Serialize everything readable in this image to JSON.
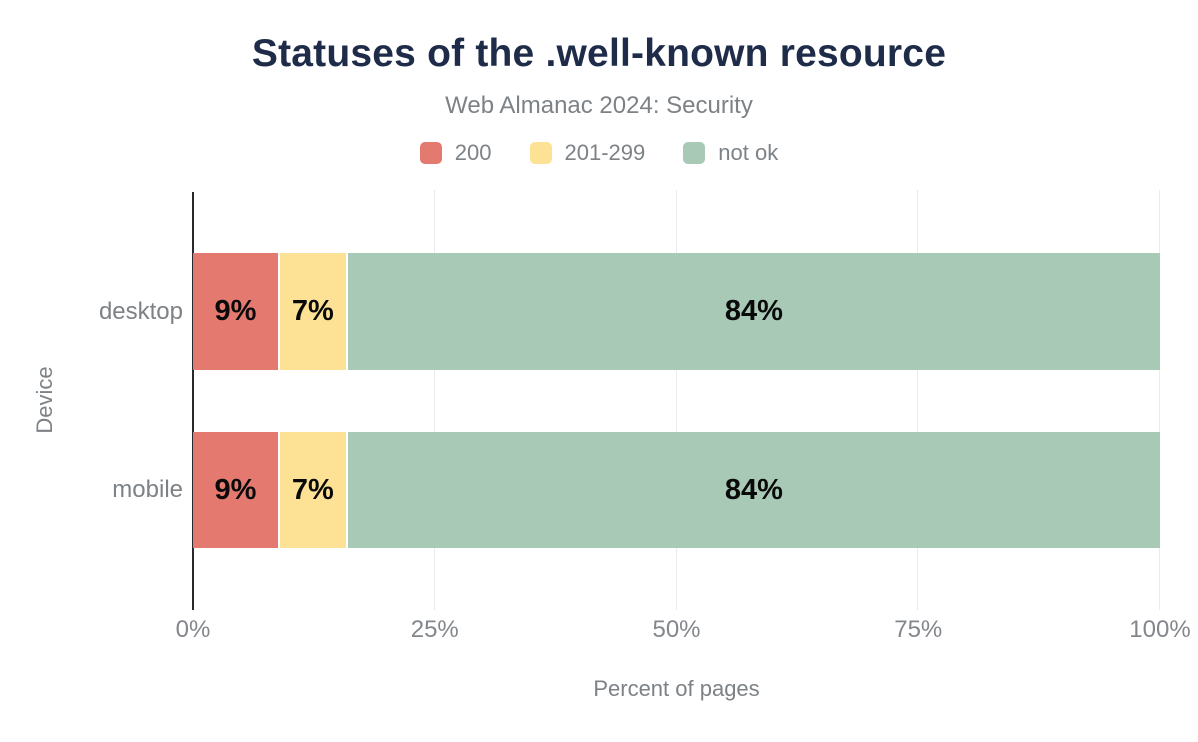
{
  "header": {
    "title": "Statuses of the .well-known resource",
    "subtitle": "Web Almanac 2024: Security"
  },
  "chart_data": {
    "type": "bar",
    "orientation": "horizontal",
    "stacked": true,
    "title": "Statuses of the .well-known resource",
    "subtitle": "Web Almanac 2024: Security",
    "categories": [
      "desktop",
      "mobile"
    ],
    "series": [
      {
        "name": "200",
        "color": "#e4796f",
        "values": [
          9,
          9
        ]
      },
      {
        "name": "201-299",
        "color": "#fde295",
        "values": [
          7,
          7
        ]
      },
      {
        "name": "not ok",
        "color": "#a8c9b5",
        "values": [
          84,
          84
        ]
      }
    ],
    "data_label_format": "{value}%",
    "xlabel": "Percent of pages",
    "ylabel": "Device",
    "xlim": [
      0,
      100
    ],
    "xticks": [
      {
        "value": 0,
        "label": "0%"
      },
      {
        "value": 25,
        "label": "25%"
      },
      {
        "value": 50,
        "label": "50%"
      },
      {
        "value": 75,
        "label": "75%"
      },
      {
        "value": 100,
        "label": "100%"
      }
    ],
    "legend_position": "top",
    "grid": "vertical"
  },
  "colors": {
    "title": "#1e2b49",
    "muted_text": "#7d8286",
    "tick_text": "#83878c",
    "axis_line": "#26292e",
    "gridline": "#ebebee",
    "data_label": "#0a0a0a",
    "background": "#ffffff"
  }
}
